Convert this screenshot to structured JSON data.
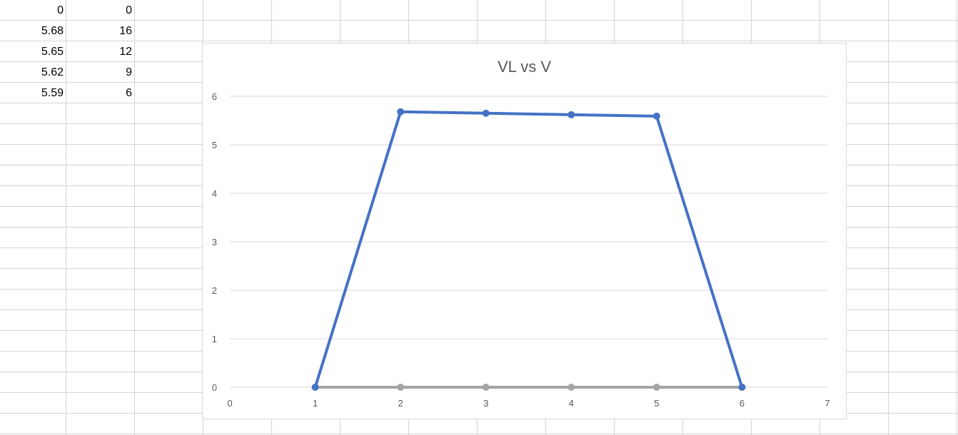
{
  "sheet": {
    "rows": [
      [
        "0",
        "0"
      ],
      [
        "5.68",
        "16"
      ],
      [
        "5.65",
        "12"
      ],
      [
        "5.62",
        "9"
      ],
      [
        "5.59",
        "6"
      ]
    ]
  },
  "chart_data": {
    "type": "line",
    "title": "VL vs V",
    "xlabel": "",
    "ylabel": "",
    "xlim": [
      0,
      7
    ],
    "ylim": [
      0,
      6
    ],
    "xticks": [
      0,
      1,
      2,
      3,
      4,
      5,
      6,
      7
    ],
    "yticks": [
      0,
      1,
      2,
      3,
      4,
      5,
      6
    ],
    "grid": "horizontal",
    "series": [
      {
        "x": [
          1,
          2,
          3,
          4,
          5,
          6
        ],
        "values": [
          0,
          5.68,
          5.65,
          5.62,
          5.59,
          0
        ],
        "color": "#4472c4"
      },
      {
        "x": [
          1,
          2,
          3,
          4,
          5,
          6
        ],
        "values": [
          0,
          0,
          0,
          0,
          0,
          0
        ],
        "color": "#a5a5a5"
      }
    ]
  }
}
